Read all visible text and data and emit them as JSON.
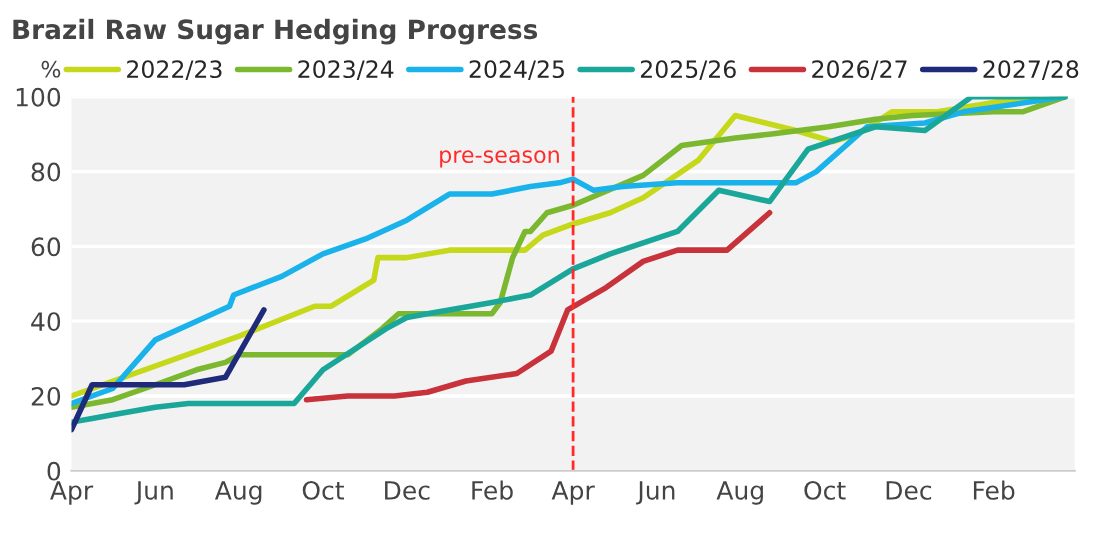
{
  "chart_data": {
    "type": "line",
    "title": "Brazil Raw Sugar Hedging Progress",
    "ylabel": "%",
    "xlim": [
      "2025-04-01",
      "2027-04-01"
    ],
    "xticks": [
      {
        "value": "2025-04-01",
        "label": "Apr"
      },
      {
        "value": "2025-06-01",
        "label": "Jun"
      },
      {
        "value": "2025-08-01",
        "label": "Aug"
      },
      {
        "value": "2025-10-01",
        "label": "Oct"
      },
      {
        "value": "2025-12-01",
        "label": "Dec"
      },
      {
        "value": "2026-02-01",
        "label": "Feb"
      },
      {
        "value": "2026-04-01",
        "label": "Apr"
      },
      {
        "value": "2026-06-01",
        "label": "Jun"
      },
      {
        "value": "2026-08-01",
        "label": "Aug"
      },
      {
        "value": "2026-10-01",
        "label": "Oct"
      },
      {
        "value": "2026-12-01",
        "label": "Dec"
      },
      {
        "value": "2027-02-01",
        "label": "Feb"
      }
    ],
    "ylim": [
      0,
      100
    ],
    "yticks": [
      0,
      20,
      40,
      60,
      80,
      100
    ],
    "grid": "y",
    "legend": "top",
    "line_style": "solid",
    "ref_lines": [
      {
        "axis": "x",
        "value": "2026-04-01",
        "label": "pre-season",
        "color": "#ff2a2a",
        "line_style": "dashed"
      }
    ],
    "series": [
      {
        "name": "2022/23",
        "color": "#c5d81a",
        "x": [
          "2025-04-01",
          "2025-08-01",
          "2025-09-25",
          "2025-10-07",
          "2025-11-07",
          "2025-11-10",
          "2025-12-01",
          "2026-01-01",
          "2026-02-25",
          "2026-03-10",
          "2026-04-01",
          "2026-04-28",
          "2026-05-22",
          "2026-07-01",
          "2026-07-28",
          "2026-09-10",
          "2026-10-07",
          "2026-10-25",
          "2026-11-19",
          "2026-12-22",
          "2027-02-10",
          "2027-03-25"
        ],
        "values": [
          20,
          36,
          44,
          44,
          51,
          57,
          57,
          59,
          59,
          63,
          66,
          69,
          73,
          83,
          95,
          91,
          88,
          90,
          96,
          96,
          99,
          100
        ]
      },
      {
        "name": "2023/24",
        "color": "#7cb82f",
        "x": [
          "2025-04-01",
          "2025-05-01",
          "2025-06-01",
          "2025-07-01",
          "2025-07-22",
          "2025-08-01",
          "2025-10-19",
          "2025-11-13",
          "2025-11-25",
          "2026-02-01",
          "2026-02-07",
          "2026-02-16",
          "2026-02-25",
          "2026-03-01",
          "2026-03-13",
          "2026-04-01",
          "2026-05-22",
          "2026-06-19",
          "2026-07-28",
          "2026-08-22",
          "2026-10-04",
          "2026-11-07",
          "2026-12-04",
          "2027-02-01",
          "2027-02-22",
          "2027-03-25"
        ],
        "values": [
          17,
          19,
          23,
          27,
          29,
          31,
          31,
          38,
          42,
          42,
          45,
          57,
          64,
          64,
          69,
          71,
          79,
          87,
          89,
          90,
          92,
          94,
          95,
          96,
          96,
          100
        ]
      },
      {
        "name": "2024/25",
        "color": "#1ab2ea",
        "x": [
          "2025-04-01",
          "2025-05-01",
          "2025-06-01",
          "2025-07-01",
          "2025-07-25",
          "2025-07-28",
          "2025-09-01",
          "2025-10-01",
          "2025-11-01",
          "2025-12-01",
          "2026-01-01",
          "2026-02-01",
          "2026-03-01",
          "2026-03-22",
          "2026-04-01",
          "2026-04-16",
          "2026-05-07",
          "2026-06-16",
          "2026-09-10",
          "2026-09-25",
          "2026-11-01",
          "2026-12-13",
          "2027-01-10",
          "2027-03-25"
        ],
        "values": [
          18,
          22,
          35,
          40,
          44,
          47,
          52,
          58,
          62,
          67,
          74,
          74,
          76,
          77,
          78,
          75,
          76,
          77,
          77,
          80,
          92,
          93,
          96,
          100
        ]
      },
      {
        "name": "2025/26",
        "color": "#1aa79a",
        "x": [
          "2025-04-01",
          "2025-04-16",
          "2025-05-01",
          "2025-06-01",
          "2025-06-25",
          "2025-09-10",
          "2025-10-01",
          "2025-11-16",
          "2025-12-01",
          "2025-12-16",
          "2026-02-01",
          "2026-03-01",
          "2026-04-01",
          "2026-04-28",
          "2026-06-16",
          "2026-07-16",
          "2026-08-22",
          "2026-09-19",
          "2026-11-07",
          "2026-12-13",
          "2027-01-16",
          "2027-03-25"
        ],
        "values": [
          13,
          14,
          15,
          17,
          18,
          18,
          27,
          38,
          41,
          42,
          45,
          47,
          54,
          58,
          64,
          75,
          72,
          86,
          92,
          91,
          100,
          100
        ]
      },
      {
        "name": "2026/27",
        "color": "#c8323a",
        "x": [
          "2025-09-19",
          "2025-10-19",
          "2025-11-22",
          "2025-12-16",
          "2026-01-13",
          "2026-02-19",
          "2026-03-16",
          "2026-03-28",
          "2026-04-25",
          "2026-05-22",
          "2026-06-16",
          "2026-07-22",
          "2026-08-22"
        ],
        "values": [
          19,
          20,
          20,
          21,
          24,
          26,
          32,
          43,
          49,
          56,
          59,
          59,
          69
        ]
      },
      {
        "name": "2027/28",
        "color": "#1f2a7a",
        "x": [
          "2025-04-01",
          "2025-04-16",
          "2025-06-22",
          "2025-07-22",
          "2025-08-19"
        ],
        "values": [
          11,
          23,
          23,
          25,
          43
        ]
      }
    ]
  }
}
